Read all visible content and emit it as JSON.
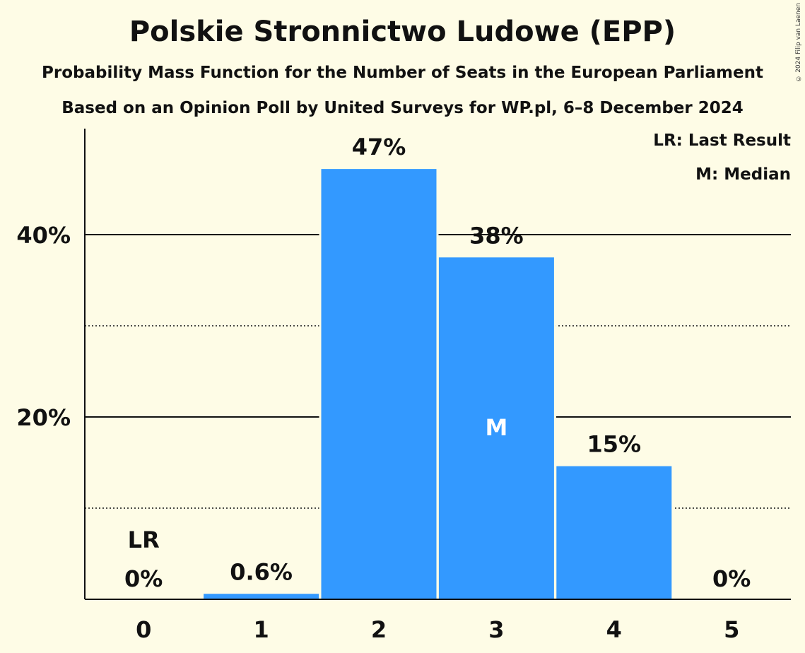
{
  "chart_data": {
    "type": "bar",
    "title": "Polskie Stronnictwo Ludowe (EPP)",
    "subtitle": "Probability Mass Function for the Number of Seats in the European Parliament",
    "subtitle2": "Based on an Opinion Poll by United Surveys for WP.pl, 6–8 December 2024",
    "categories": [
      "0",
      "1",
      "2",
      "3",
      "4",
      "5"
    ],
    "values": [
      0,
      0.6,
      47.2,
      37.5,
      14.6,
      0
    ],
    "value_labels": [
      "0%",
      "0.6%",
      "47%",
      "38%",
      "15%",
      "0%"
    ],
    "ylim": [
      0,
      52
    ],
    "yticks_solid": [
      20,
      40
    ],
    "yticks_dotted": [
      10,
      30
    ],
    "ytick_labels": [
      "20%",
      "40%"
    ],
    "last_result_index": 0,
    "median_index": 3,
    "last_result_marker": "LR",
    "median_marker": "M",
    "legend": [
      "LR: Last Result",
      "M: Median"
    ],
    "bar_color": "#3399ff",
    "grid": true
  },
  "copyright": "© 2024 Filip van Laenen"
}
